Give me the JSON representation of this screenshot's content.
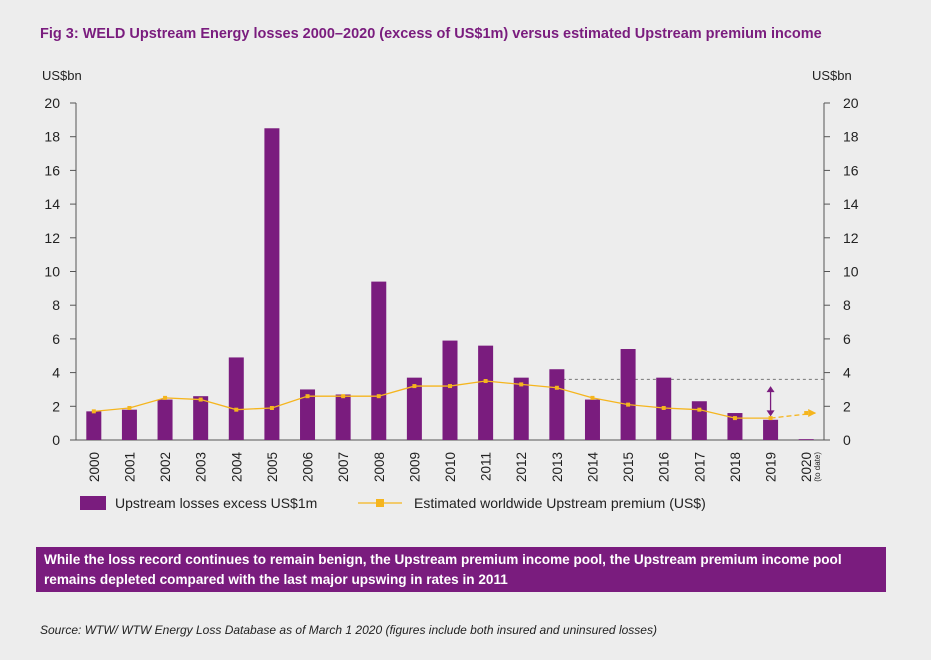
{
  "title": "Fig 3: WELD Upstream Energy losses 2000–2020 (excess of US$1m) versus estimated Upstream premium income",
  "callout": "While the loss record continues to remain benign, the Upstream premium income pool, the Upstream premium income pool remains depleted compared with the last major upswing in rates in 2011",
  "source": "Source:  WTW/ WTW Energy Loss Database as of March 1 2020 (figures include both insured and uninsured losses)",
  "colors": {
    "bar": "#7a1c7e",
    "line": "#f5b51e",
    "title": "#7a1c7e"
  },
  "chart_data": {
    "type": "bar",
    "categories": [
      "2000",
      "2001",
      "2002",
      "2003",
      "2004",
      "2005",
      "2006",
      "2007",
      "2008",
      "2009",
      "2010",
      "2011",
      "2012",
      "2013",
      "2014",
      "2015",
      "2016",
      "2017",
      "2018",
      "2019",
      "2020"
    ],
    "category_sublabels": {
      "2020": "(to date)"
    },
    "ylabel_left": "US$bn",
    "ylabel_right": "US$bn",
    "ylim": [
      0,
      20
    ],
    "yticks": [
      0,
      2,
      4,
      6,
      8,
      10,
      12,
      14,
      16,
      18,
      20
    ],
    "grid": false,
    "legend_position": "bottom",
    "series": [
      {
        "name": "Upstream losses excess US$1m",
        "type": "bar",
        "values": [
          1.7,
          1.8,
          2.4,
          2.6,
          4.9,
          18.5,
          3.0,
          2.7,
          9.4,
          3.7,
          5.9,
          5.6,
          3.7,
          4.2,
          2.4,
          5.4,
          3.7,
          2.3,
          1.6,
          1.2,
          0.05
        ]
      },
      {
        "name": "Estimated worldwide Upstream premium (US$)",
        "type": "line",
        "values": [
          1.7,
          1.9,
          2.5,
          2.4,
          1.8,
          1.9,
          2.6,
          2.6,
          2.6,
          3.2,
          3.2,
          3.5,
          3.3,
          3.1,
          2.5,
          2.1,
          1.9,
          1.8,
          1.3,
          1.3,
          1.6
        ]
      }
    ],
    "annotations": {
      "reference_line_value": 3.6,
      "reference_line_from": "2013",
      "arrow_category": "2019",
      "arrow_range": [
        1.4,
        3.2
      ]
    }
  }
}
